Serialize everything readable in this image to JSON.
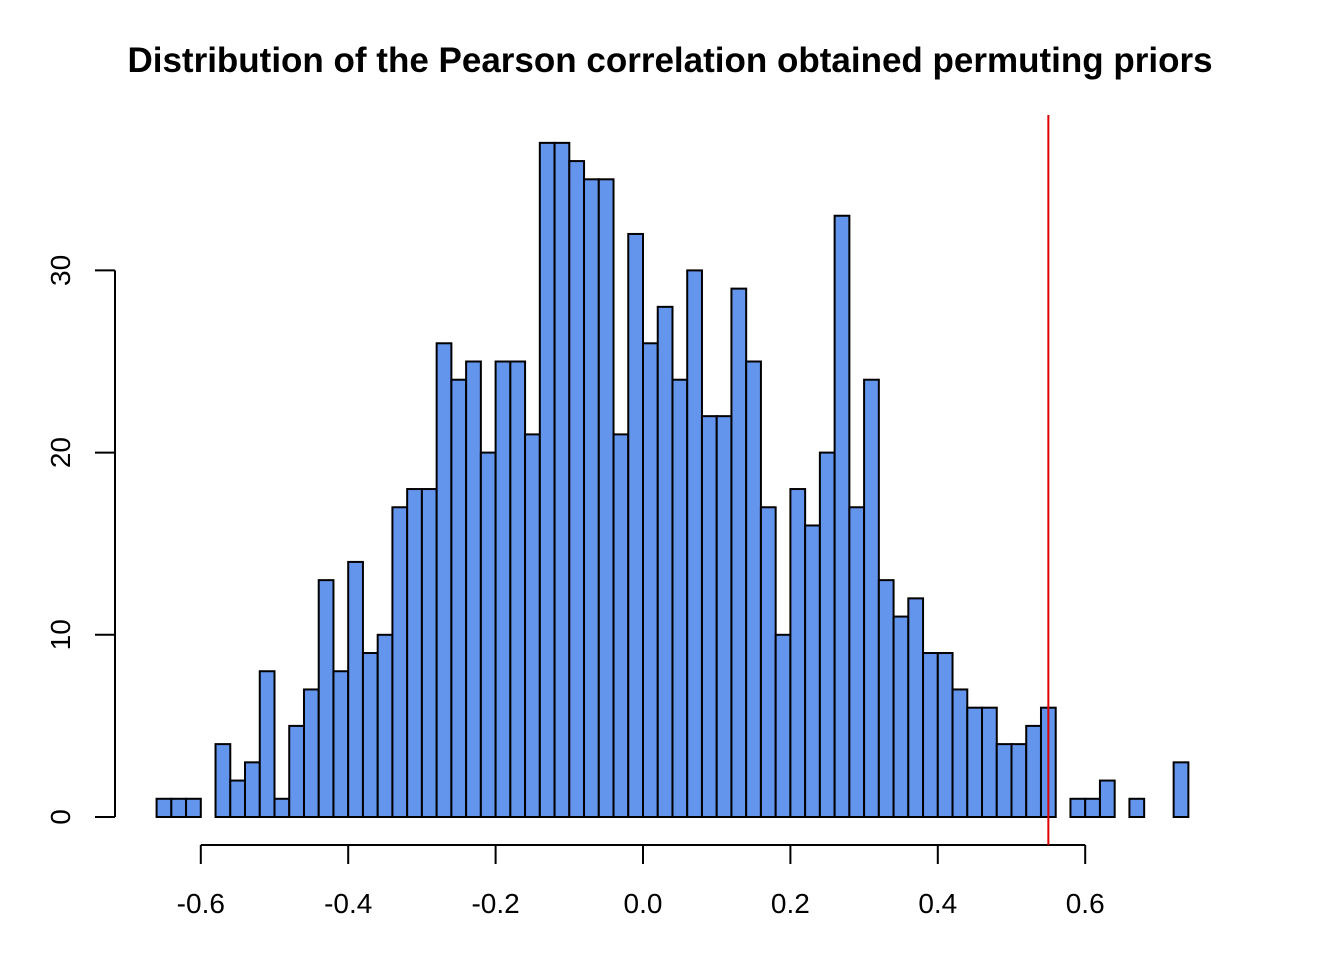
{
  "chart_data": {
    "type": "bar",
    "title": "Distribution of the Pearson correlation obtained permuting priors",
    "xlabel": "",
    "ylabel": "",
    "bin_start": -0.66,
    "bin_width": 0.02,
    "values": [
      1,
      1,
      1,
      0,
      4,
      2,
      3,
      8,
      1,
      5,
      7,
      13,
      8,
      14,
      9,
      10,
      17,
      18,
      18,
      26,
      24,
      25,
      20,
      25,
      25,
      21,
      37,
      37,
      36,
      35,
      35,
      21,
      32,
      26,
      28,
      24,
      30,
      22,
      22,
      29,
      25,
      17,
      10,
      18,
      16,
      20,
      33,
      17,
      24,
      13,
      11,
      12,
      9,
      9,
      7,
      6,
      6,
      4,
      4,
      5,
      6,
      0,
      1,
      1,
      2,
      0,
      1,
      0,
      0,
      3
    ],
    "xlim": [
      -0.66,
      0.74
    ],
    "ylim": [
      0,
      37
    ],
    "x_ticks": [
      -0.6,
      -0.4,
      -0.2,
      0.0,
      0.2,
      0.4,
      0.6
    ],
    "x_tick_labels": [
      "-0.6",
      "-0.4",
      "-0.2",
      "0.0",
      "0.2",
      "0.4",
      "0.6"
    ],
    "y_ticks": [
      0,
      10,
      20,
      30
    ],
    "y_tick_labels": [
      "0",
      "10",
      "20",
      "30"
    ],
    "reference_line": {
      "x": 0.55
    },
    "colors": {
      "bar_fill": "#6495ED",
      "bar_stroke": "#000000",
      "reference_line": "#DD0000"
    },
    "grid": false,
    "legend": "none"
  }
}
